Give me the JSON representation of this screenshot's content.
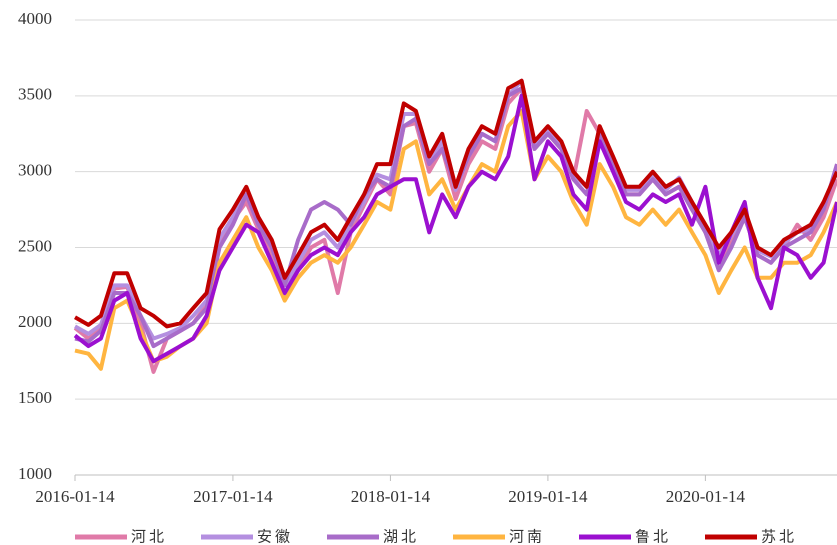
{
  "chart_data": {
    "type": "line",
    "x": [
      "2016-01-14",
      "2016-02-14",
      "2016-03-14",
      "2016-04-14",
      "2016-05-14",
      "2016-06-14",
      "2016-07-14",
      "2016-08-14",
      "2016-09-14",
      "2016-10-14",
      "2016-11-14",
      "2016-12-14",
      "2017-01-14",
      "2017-02-14",
      "2017-03-14",
      "2017-04-14",
      "2017-05-14",
      "2017-06-14",
      "2017-07-14",
      "2017-08-14",
      "2017-09-14",
      "2017-10-14",
      "2017-11-14",
      "2017-12-14",
      "2018-01-14",
      "2018-02-14",
      "2018-03-14",
      "2018-04-14",
      "2018-05-14",
      "2018-06-14",
      "2018-07-14",
      "2018-08-14",
      "2018-09-14",
      "2018-10-14",
      "2018-11-14",
      "2018-12-14",
      "2019-01-14",
      "2019-02-14",
      "2019-03-14",
      "2019-04-14",
      "2019-05-14",
      "2019-06-14",
      "2019-07-14",
      "2019-08-14",
      "2019-09-14",
      "2019-10-14",
      "2019-11-14",
      "2019-12-14",
      "2020-01-14",
      "2020-02-14",
      "2020-03-14",
      "2020-04-14",
      "2020-05-14",
      "2020-06-14",
      "2020-07-14",
      "2020-08-14",
      "2020-09-14",
      "2020-10-14",
      "2020-11-14"
    ],
    "series": [
      {
        "name": "河北",
        "color": "#e07aa8",
        "values": [
          1970,
          1900,
          1960,
          2230,
          2240,
          2000,
          1680,
          1900,
          1950,
          2000,
          2120,
          2520,
          2680,
          2800,
          2620,
          2450,
          2180,
          2350,
          2500,
          2550,
          2200,
          2600,
          2780,
          2950,
          2850,
          3300,
          3320,
          3000,
          3150,
          2820,
          3050,
          3200,
          3150,
          3450,
          3550,
          3150,
          3250,
          3150,
          2950,
          3400,
          3250,
          3050,
          2850,
          2850,
          2950,
          2850,
          2900,
          2780,
          2600,
          2400,
          2550,
          2700,
          2450,
          2400,
          2500,
          2650,
          2550,
          2700,
          2950
        ]
      },
      {
        "name": "安徽",
        "color": "#b48fe0",
        "values": [
          1980,
          1930,
          1990,
          2250,
          2250,
          2050,
          1900,
          1930,
          1970,
          2050,
          2150,
          2560,
          2700,
          2850,
          2650,
          2500,
          2250,
          2400,
          2550,
          2600,
          2500,
          2650,
          2800,
          2980,
          2950,
          3380,
          3380,
          3050,
          3200,
          2880,
          3100,
          3250,
          3200,
          3500,
          3600,
          3180,
          3280,
          3180,
          2980,
          2900,
          3270,
          3080,
          2880,
          2880,
          2980,
          2880,
          2960,
          2800,
          2620,
          2450,
          2580,
          2720,
          2480,
          2440,
          2530,
          2600,
          2620,
          2780,
          3000
        ]
      },
      {
        "name": "湖北",
        "color": "#a86cc9",
        "values": [
          1900,
          1880,
          1950,
          2200,
          2200,
          2050,
          1850,
          1900,
          1950,
          2000,
          2100,
          2500,
          2650,
          2850,
          2650,
          2500,
          2250,
          2550,
          2750,
          2800,
          2750,
          2650,
          2850,
          2950,
          2900,
          3300,
          3350,
          3050,
          3150,
          2900,
          3100,
          3250,
          3200,
          3500,
          3550,
          3150,
          3250,
          3150,
          2950,
          2850,
          3250,
          3050,
          2850,
          2850,
          2950,
          2850,
          2900,
          2750,
          2600,
          2350,
          2500,
          2700,
          2450,
          2400,
          2500,
          2550,
          2600,
          2750,
          3050
        ]
      },
      {
        "name": "河南",
        "color": "#ffb540",
        "values": [
          1820,
          1800,
          1700,
          2100,
          2150,
          1950,
          1750,
          1780,
          1850,
          1900,
          2000,
          2400,
          2550,
          2700,
          2500,
          2350,
          2150,
          2300,
          2400,
          2450,
          2400,
          2500,
          2650,
          2800,
          2750,
          3150,
          3200,
          2850,
          2950,
          2750,
          2900,
          3050,
          3000,
          3300,
          3400,
          2950,
          3100,
          3000,
          2800,
          2650,
          3050,
          2900,
          2700,
          2650,
          2750,
          2650,
          2750,
          2600,
          2450,
          2200,
          2350,
          2500,
          2300,
          2300,
          2400,
          2400,
          2450,
          2600,
          2800
        ]
      },
      {
        "name": "鲁北",
        "color": "#9b10d0",
        "values": [
          1920,
          1850,
          1900,
          2150,
          2200,
          1900,
          1750,
          1800,
          1850,
          1900,
          2050,
          2350,
          2500,
          2650,
          2600,
          2400,
          2200,
          2350,
          2450,
          2500,
          2450,
          2600,
          2700,
          2850,
          2900,
          2950,
          2950,
          2600,
          2850,
          2700,
          2900,
          3000,
          2950,
          3100,
          3500,
          2950,
          3200,
          3100,
          2850,
          2750,
          3200,
          3000,
          2800,
          2750,
          2850,
          2800,
          2850,
          2650,
          2900,
          2400,
          2600,
          2800,
          2300,
          2100,
          2500,
          2450,
          2300,
          2400,
          2800
        ]
      },
      {
        "name": "苏北",
        "color": "#c00000",
        "values": [
          2040,
          1990,
          2050,
          2330,
          2330,
          2100,
          2050,
          1980,
          2000,
          2100,
          2200,
          2620,
          2750,
          2900,
          2700,
          2550,
          2300,
          2450,
          2600,
          2650,
          2550,
          2700,
          2850,
          3050,
          3050,
          3450,
          3400,
          3100,
          3250,
          2900,
          3150,
          3300,
          3250,
          3550,
          3600,
          3200,
          3300,
          3200,
          3000,
          2900,
          3300,
          3100,
          2900,
          2900,
          3000,
          2900,
          2950,
          2800,
          2650,
          2500,
          2600,
          2750,
          2500,
          2450,
          2550,
          2600,
          2650,
          2800,
          3000
        ]
      }
    ],
    "xlim": [
      "2016-01-14",
      "2020-11-14"
    ],
    "xticks": [
      "2016-01-14",
      "2017-01-14",
      "2018-01-14",
      "2019-01-14",
      "2020-01-14"
    ],
    "ylim": [
      1000,
      4000
    ],
    "yticks": [
      1000,
      1500,
      2000,
      2500,
      3000,
      3500,
      4000
    ],
    "grid": true,
    "legend": "bottom"
  }
}
